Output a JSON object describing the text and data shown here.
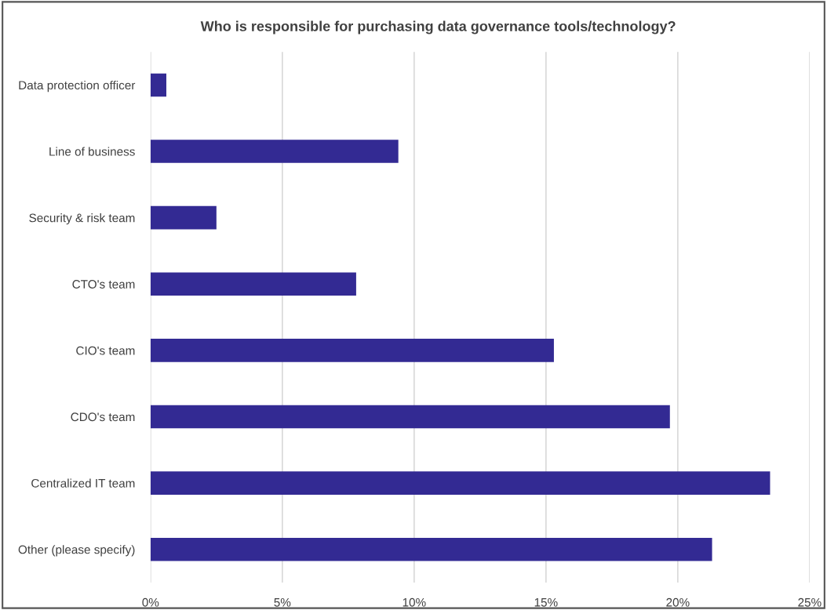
{
  "chart_data": {
    "type": "bar",
    "orientation": "horizontal",
    "title": "Who is responsible for purchasing data governance tools/technology?",
    "categories": [
      "Data protection officer",
      "Line of business",
      "Security & risk team",
      "CTO's team",
      "CIO's team",
      "CDO's team",
      "Centralized IT team",
      "Other (please specify)"
    ],
    "values": [
      0.6,
      9.4,
      2.5,
      7.8,
      15.3,
      19.7,
      23.5,
      21.3
    ],
    "color": "#332a93",
    "xlim": [
      0,
      25
    ],
    "xticks": [
      {
        "value": 0,
        "label": "0%"
      },
      {
        "value": 5,
        "label": "5%"
      },
      {
        "value": 10,
        "label": "10%"
      },
      {
        "value": 15,
        "label": "15%"
      },
      {
        "value": 20,
        "label": "20%"
      },
      {
        "value": 25,
        "label": "25%"
      }
    ],
    "grid": "x"
  }
}
